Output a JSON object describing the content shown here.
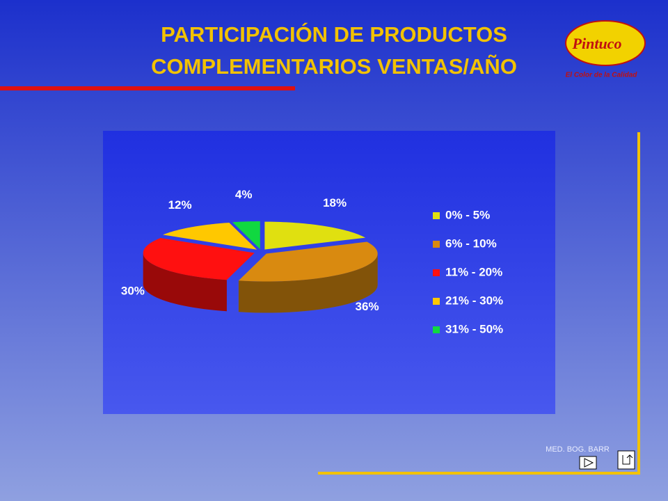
{
  "chart_data": {
    "type": "pie3d",
    "title": [
      "PARTICIPACIÓN DE PRODUCTOS",
      "COMPLEMENTARIOS VENTAS/AÑO"
    ],
    "categories": [
      "0% - 5%",
      "6% - 10%",
      "11% - 20%",
      "21% - 30%",
      "31% - 50%"
    ],
    "values": [
      18,
      36,
      30,
      12,
      4
    ],
    "value_labels": [
      "18%",
      "36%",
      "30%",
      "12%",
      "4%"
    ],
    "colors": [
      "#e0e010",
      "#d98a10",
      "#ff1010",
      "#ffc800",
      "#10d840"
    ],
    "legend": "right"
  },
  "logo": {
    "brand": "Pintuco",
    "tagline": "El Color de la Calidad"
  },
  "footer": "MED. BOG. BARR"
}
